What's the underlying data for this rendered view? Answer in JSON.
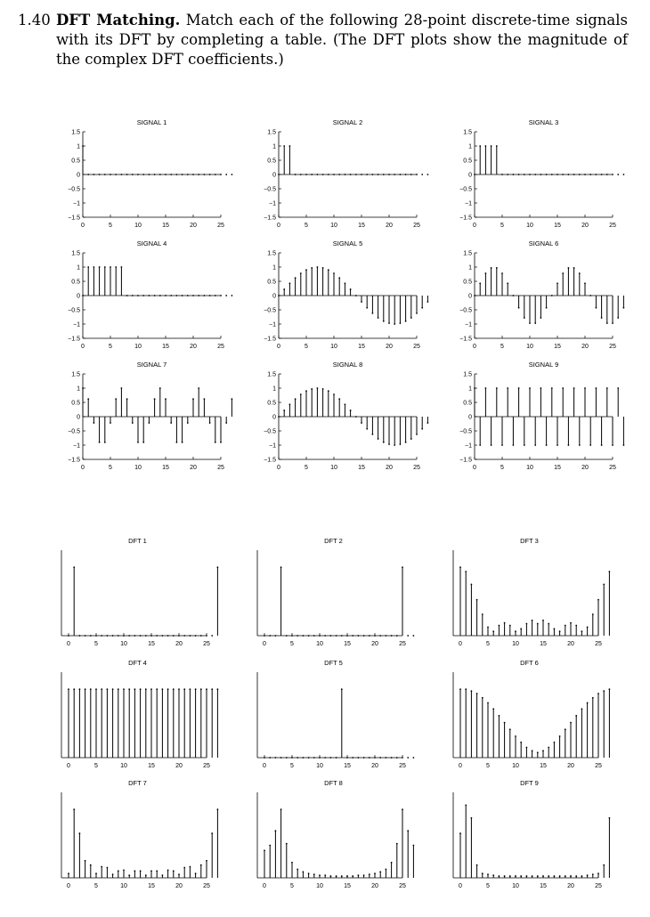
{
  "problem": {
    "number": "1.40",
    "heading": "DFT Matching.",
    "body": "Match each of the following 28-point discrete-time signals with its DFT by completing a table. (The DFT plots show the magnitude of the complex DFT coefficients.)"
  },
  "chart_data": [
    {
      "type": "stem",
      "title": "SIGNAL 1",
      "xticks": [
        0,
        5,
        10,
        15,
        20,
        25
      ],
      "yticks": [
        "1.5",
        "1",
        "0.5",
        "0",
        "-0.5",
        "-1",
        "-1.5"
      ],
      "ylim": [
        -1.5,
        1.5
      ],
      "values": [
        1,
        0,
        0,
        0,
        0,
        0,
        0,
        0,
        0,
        0,
        0,
        0,
        0,
        0,
        0,
        0,
        0,
        0,
        0,
        0,
        0,
        0,
        0,
        0,
        0,
        0,
        0,
        0
      ]
    },
    {
      "type": "stem",
      "title": "SIGNAL 2",
      "xticks": [
        0,
        5,
        10,
        15,
        20,
        25
      ],
      "yticks": [
        "1.5",
        "1",
        "0.5",
        "0",
        "-0.5",
        "-1",
        "-1.5"
      ],
      "ylim": [
        -1.5,
        1.5
      ],
      "values": [
        0,
        1,
        1,
        0,
        0,
        0,
        0,
        0,
        0,
        0,
        0,
        0,
        0,
        0,
        0,
        0,
        0,
        0,
        0,
        0,
        0,
        0,
        0,
        0,
        0,
        0,
        0,
        0
      ]
    },
    {
      "type": "stem",
      "title": "SIGNAL 3",
      "xticks": [
        0,
        5,
        10,
        15,
        20,
        25
      ],
      "yticks": [
        "1.5",
        "1",
        "0.5",
        "0",
        "-0.5",
        "-1",
        "-1.5"
      ],
      "ylim": [
        -1.5,
        1.5
      ],
      "values": [
        0,
        1,
        1,
        1,
        1,
        0,
        0,
        0,
        0,
        0,
        0,
        0,
        0,
        0,
        0,
        0,
        0,
        0,
        0,
        0,
        0,
        0,
        0,
        0,
        0,
        0,
        0,
        0
      ]
    },
    {
      "type": "stem",
      "title": "SIGNAL 4",
      "xticks": [
        0,
        5,
        10,
        15,
        20,
        25
      ],
      "yticks": [
        "1.5",
        "1",
        "0.5",
        "0",
        "-0.5",
        "-1",
        "-1.5"
      ],
      "ylim": [
        -1.5,
        1.5
      ],
      "values": [
        0,
        1,
        1,
        1,
        1,
        1,
        1,
        1,
        0,
        0,
        0,
        0,
        0,
        0,
        0,
        0,
        0,
        0,
        0,
        0,
        0,
        0,
        0,
        0,
        0,
        0,
        0,
        0
      ]
    },
    {
      "type": "stem",
      "title": "SIGNAL 5",
      "xticks": [
        0,
        5,
        10,
        15,
        20,
        25
      ],
      "yticks": [
        "1.5",
        "1",
        "0.5",
        "0",
        "-0.5",
        "-1",
        "-1.5"
      ],
      "ylim": [
        -1.5,
        1.5
      ],
      "values": [
        0,
        0.22,
        0.43,
        0.62,
        0.78,
        0.9,
        0.97,
        1,
        0.97,
        0.9,
        0.78,
        0.62,
        0.43,
        0.22,
        0,
        -0.22,
        -0.43,
        -0.62,
        -0.78,
        -0.9,
        -0.97,
        -1,
        -0.97,
        -0.9,
        -0.78,
        -0.62,
        -0.43,
        -0.22
      ]
    },
    {
      "type": "stem",
      "title": "SIGNAL 6",
      "xticks": [
        0,
        5,
        10,
        15,
        20,
        25
      ],
      "yticks": [
        "1.5",
        "1",
        "0.5",
        "0",
        "-0.5",
        "-1",
        "-1.5"
      ],
      "ylim": [
        -1.5,
        1.5
      ],
      "values": [
        0,
        0.43,
        0.78,
        0.97,
        0.97,
        0.78,
        0.43,
        0,
        -0.43,
        -0.78,
        -0.97,
        -0.97,
        -0.78,
        -0.43,
        0,
        0.43,
        0.78,
        0.97,
        0.97,
        0.78,
        0.43,
        0,
        -0.43,
        -0.78,
        -0.97,
        -0.97,
        -0.78,
        -0.43
      ]
    },
    {
      "type": "stem",
      "title": "SIGNAL 7",
      "xticks": [
        0,
        5,
        10,
        15,
        20,
        25
      ],
      "yticks": [
        "1.5",
        "1",
        "0.5",
        "0",
        "-0.5",
        "-1",
        "-1.5"
      ],
      "ylim": [
        -1.5,
        1.5
      ],
      "values": [
        1,
        0.62,
        -0.22,
        -0.9,
        -0.9,
        -0.22,
        0.62,
        1,
        0.62,
        -0.22,
        -0.9,
        -0.9,
        -0.22,
        0.62,
        1,
        0.62,
        -0.22,
        -0.9,
        -0.9,
        -0.22,
        0.62,
        1,
        0.62,
        -0.22,
        -0.9,
        -0.9,
        -0.22,
        0.62
      ]
    },
    {
      "type": "stem",
      "title": "SIGNAL 8",
      "xticks": [
        0,
        5,
        10,
        15,
        20,
        25
      ],
      "yticks": [
        "1.5",
        "1",
        "0.5",
        "0",
        "-0.5",
        "-1",
        "-1.5"
      ],
      "ylim": [
        -1.5,
        1.5
      ],
      "values": [
        0,
        0.22,
        0.43,
        0.62,
        0.78,
        0.9,
        0.97,
        1,
        0.97,
        0.9,
        0.78,
        0.62,
        0.43,
        0.22,
        0,
        -0.22,
        -0.43,
        -0.62,
        -0.78,
        -0.9,
        -0.97,
        -1,
        -0.97,
        -0.9,
        -0.78,
        -0.62,
        -0.43,
        -0.22
      ]
    },
    {
      "type": "stem",
      "title": "SIGNAL 9",
      "xticks": [
        0,
        5,
        10,
        15,
        20,
        25
      ],
      "yticks": [
        "1.5",
        "1",
        "0.5",
        "0",
        "-0.5",
        "-1",
        "-1.5"
      ],
      "ylim": [
        -1.5,
        1.5
      ],
      "values": [
        1,
        -1,
        1,
        -1,
        1,
        -1,
        1,
        -1,
        1,
        -1,
        1,
        -1,
        1,
        -1,
        1,
        -1,
        1,
        -1,
        1,
        -1,
        1,
        -1,
        1,
        -1,
        1,
        -1,
        1,
        -1
      ]
    },
    {
      "type": "stem",
      "title": "DFT 1",
      "xticks": [
        0,
        5,
        10,
        15,
        20,
        25
      ],
      "ylim": [
        0,
        1
      ],
      "values": [
        0,
        0.8,
        0,
        0,
        0,
        0,
        0,
        0,
        0,
        0,
        0,
        0,
        0,
        0,
        0,
        0,
        0,
        0,
        0,
        0,
        0,
        0,
        0,
        0,
        0,
        0,
        0,
        0.8
      ]
    },
    {
      "type": "stem",
      "title": "DFT 2",
      "xticks": [
        0,
        5,
        10,
        15,
        20,
        25
      ],
      "ylim": [
        0,
        1
      ],
      "values": [
        0,
        0,
        0,
        0.8,
        0,
        0,
        0,
        0,
        0,
        0,
        0,
        0,
        0,
        0,
        0,
        0,
        0,
        0,
        0,
        0,
        0,
        0,
        0,
        0,
        0,
        0.8,
        0,
        0
      ]
    },
    {
      "type": "stem",
      "title": "DFT 3",
      "xticks": [
        0,
        5,
        10,
        15,
        20,
        25
      ],
      "ylim": [
        0,
        1
      ],
      "values": [
        0.8,
        0.75,
        0.6,
        0.42,
        0.25,
        0.1,
        0.05,
        0.12,
        0.15,
        0.12,
        0.05,
        0.08,
        0.14,
        0.18,
        0.14,
        0.18,
        0.14,
        0.08,
        0.05,
        0.12,
        0.15,
        0.12,
        0.05,
        0.1,
        0.25,
        0.42,
        0.6,
        0.75
      ]
    },
    {
      "type": "stem",
      "title": "DFT 4",
      "xticks": [
        0,
        5,
        10,
        15,
        20,
        25
      ],
      "ylim": [
        0,
        1
      ],
      "values": [
        0.8,
        0.8,
        0.8,
        0.8,
        0.8,
        0.8,
        0.8,
        0.8,
        0.8,
        0.8,
        0.8,
        0.8,
        0.8,
        0.8,
        0.8,
        0.8,
        0.8,
        0.8,
        0.8,
        0.8,
        0.8,
        0.8,
        0.8,
        0.8,
        0.8,
        0.8,
        0.8,
        0.8
      ]
    },
    {
      "type": "stem",
      "title": "DFT 5",
      "xticks": [
        0,
        5,
        10,
        15,
        20,
        25
      ],
      "ylim": [
        0,
        1
      ],
      "values": [
        0,
        0,
        0,
        0,
        0,
        0,
        0,
        0,
        0,
        0,
        0,
        0,
        0,
        0,
        0.8,
        0,
        0,
        0,
        0,
        0,
        0,
        0,
        0,
        0,
        0,
        0,
        0,
        0
      ]
    },
    {
      "type": "stem",
      "title": "DFT 6",
      "xticks": [
        0,
        5,
        10,
        15,
        20,
        25
      ],
      "ylim": [
        0,
        1
      ],
      "values": [
        0.8,
        0.8,
        0.78,
        0.75,
        0.7,
        0.64,
        0.57,
        0.49,
        0.41,
        0.33,
        0.25,
        0.18,
        0.12,
        0.08,
        0.06,
        0.08,
        0.12,
        0.18,
        0.25,
        0.33,
        0.41,
        0.49,
        0.57,
        0.64,
        0.7,
        0.75,
        0.78,
        0.8
      ]
    },
    {
      "type": "stem",
      "title": "DFT 7",
      "xticks": [
        0,
        5,
        10,
        15,
        20,
        25
      ],
      "ylim": [
        0,
        1
      ],
      "values": [
        0.05,
        0.8,
        0.52,
        0.2,
        0.15,
        0.05,
        0.13,
        0.12,
        0.04,
        0.08,
        0.09,
        0.03,
        0.08,
        0.08,
        0.03,
        0.08,
        0.08,
        0.03,
        0.09,
        0.08,
        0.04,
        0.12,
        0.13,
        0.05,
        0.15,
        0.2,
        0.52,
        0.8
      ]
    },
    {
      "type": "stem",
      "title": "DFT 8",
      "xticks": [
        0,
        5,
        10,
        15,
        20,
        25
      ],
      "ylim": [
        0,
        1
      ],
      "values": [
        0.32,
        0.38,
        0.55,
        0.8,
        0.4,
        0.18,
        0.1,
        0.07,
        0.05,
        0.04,
        0.03,
        0.03,
        0.02,
        0.02,
        0.02,
        0.02,
        0.02,
        0.03,
        0.03,
        0.04,
        0.05,
        0.07,
        0.1,
        0.18,
        0.4,
        0.8,
        0.55,
        0.38
      ]
    },
    {
      "type": "stem",
      "title": "DFT 9",
      "xticks": [
        0,
        5,
        10,
        15,
        20,
        25
      ],
      "ylim": [
        0,
        1
      ],
      "values": [
        0.52,
        0.85,
        0.7,
        0.15,
        0.05,
        0.04,
        0.03,
        0.02,
        0.02,
        0.02,
        0.02,
        0.02,
        0.02,
        0.02,
        0.02,
        0.02,
        0.02,
        0.02,
        0.02,
        0.02,
        0.02,
        0.02,
        0.02,
        0.03,
        0.04,
        0.05,
        0.15,
        0.7
      ]
    }
  ]
}
